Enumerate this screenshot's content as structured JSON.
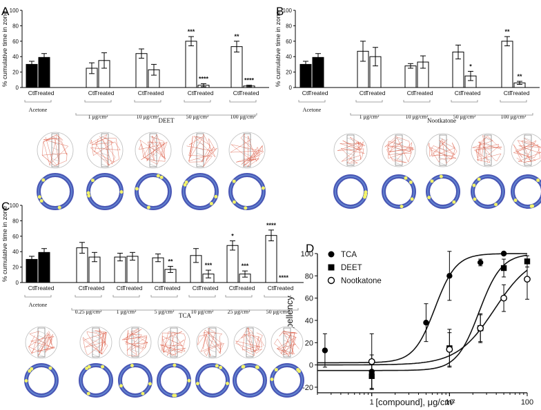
{
  "colors": {
    "control_fill": "#000000",
    "treated_fill": "#ffffff",
    "track_line": "#d9533b",
    "heat_ring": "#2a3aa8",
    "heat_hot": "#f3f36a"
  },
  "chart_data": [
    {
      "panel": "A",
      "type": "bar",
      "ylabel": "% cumulative time in zone",
      "ylim": [
        0,
        100
      ],
      "yticks": [
        "0",
        "20",
        "40",
        "60",
        "80",
        "100"
      ],
      "compound": "DEET",
      "bar_labels": [
        "Ctl",
        "Treated"
      ],
      "groups": [
        {
          "label": "Acetone",
          "values": [
            30,
            39
          ],
          "errors": [
            4,
            5
          ],
          "stars": [
            "",
            ""
          ],
          "control": true
        },
        {
          "label": "1 μg/cm²",
          "values": [
            25,
            35
          ],
          "errors": [
            7,
            10
          ],
          "stars": [
            "",
            ""
          ]
        },
        {
          "label": "10 μg/cm²",
          "values": [
            44,
            23
          ],
          "errors": [
            6,
            7
          ],
          "stars": [
            "",
            ""
          ]
        },
        {
          "label": "50 μg/cm²",
          "values": [
            60,
            3
          ],
          "errors": [
            6,
            2
          ],
          "stars": [
            "***",
            "****"
          ]
        },
        {
          "label": "100 μg/cm²",
          "values": [
            53,
            2
          ],
          "errors": [
            7,
            1
          ],
          "stars": [
            "**",
            "****"
          ]
        }
      ]
    },
    {
      "panel": "B",
      "type": "bar",
      "ylabel": "% cumulative time in zone",
      "ylim": [
        0,
        100
      ],
      "yticks": [
        "0",
        "20",
        "40",
        "60",
        "80",
        "100"
      ],
      "compound": "Nootkatone",
      "bar_labels": [
        "Ctl",
        "Treated"
      ],
      "groups": [
        {
          "label": "Acetone",
          "values": [
            30,
            39
          ],
          "errors": [
            4,
            5
          ],
          "stars": [
            "",
            ""
          ],
          "control": true
        },
        {
          "label": "1 μg/cm²",
          "values": [
            47,
            40
          ],
          "errors": [
            13,
            12
          ],
          "stars": [
            "",
            ""
          ]
        },
        {
          "label": "10 μg/cm²",
          "values": [
            28,
            33
          ],
          "errors": [
            3,
            8
          ],
          "stars": [
            "",
            ""
          ]
        },
        {
          "label": "50 μg/cm²",
          "values": [
            46,
            15
          ],
          "errors": [
            9,
            6
          ],
          "stars": [
            "",
            "*"
          ]
        },
        {
          "label": "100 μg/cm²",
          "values": [
            60,
            6
          ],
          "errors": [
            6,
            2
          ],
          "stars": [
            "**",
            "**"
          ]
        }
      ]
    },
    {
      "panel": "C",
      "type": "bar",
      "ylabel": "% cumulative time in zone",
      "ylim": [
        0,
        100
      ],
      "yticks": [
        "0",
        "20",
        "40",
        "60",
        "80",
        "100"
      ],
      "compound": "TCA",
      "bar_labels": [
        "Ctl",
        "Treated"
      ],
      "groups": [
        {
          "label": "Acetone",
          "values": [
            30,
            39
          ],
          "errors": [
            4,
            5
          ],
          "stars": [
            "",
            ""
          ],
          "control": true
        },
        {
          "label": "0.25 μg/cm²",
          "values": [
            45,
            33
          ],
          "errors": [
            7,
            6
          ],
          "stars": [
            "",
            ""
          ]
        },
        {
          "label": "1 μg/cm²",
          "values": [
            33,
            34
          ],
          "errors": [
            5,
            5
          ],
          "stars": [
            "",
            ""
          ]
        },
        {
          "label": "5 μg/cm²",
          "values": [
            32,
            17
          ],
          "errors": [
            5,
            4
          ],
          "stars": [
            "",
            "**"
          ]
        },
        {
          "label": "10 μg/cm²",
          "values": [
            35,
            11
          ],
          "errors": [
            9,
            5
          ],
          "stars": [
            "",
            "***"
          ]
        },
        {
          "label": "25 μg/cm²",
          "values": [
            48,
            11
          ],
          "errors": [
            6,
            4
          ],
          "stars": [
            "*",
            "***"
          ]
        },
        {
          "label": "50 μg/cm²",
          "values": [
            61,
            0
          ],
          "errors": [
            7,
            0
          ],
          "stars": [
            "****",
            "****"
          ]
        }
      ]
    },
    {
      "panel": "D",
      "type": "scatter",
      "xlabel": "[compound], μg/cm²",
      "ylabel": "% Repellency",
      "xscale": "log",
      "xlim": [
        0.2,
        100
      ],
      "ylim": [
        -25,
        100
      ],
      "xticks": [
        "1",
        "10",
        "100"
      ],
      "yticks": [
        "-20",
        "0",
        "20",
        "40",
        "60",
        "80",
        "100"
      ],
      "legend_position": "top-left",
      "series": [
        {
          "name": "TCA",
          "marker": "filled-circle",
          "x": [
            0.25,
            1,
            5,
            10,
            25,
            50
          ],
          "y": [
            13,
            -6,
            38,
            80,
            92,
            100
          ],
          "err": [
            15,
            15,
            17,
            22,
            3,
            0
          ],
          "fit": {
            "bottom": 2,
            "top": 100,
            "ec50": 6.5,
            "hill": 3.2
          }
        },
        {
          "name": "DEET",
          "marker": "filled-square",
          "x": [
            1,
            10,
            25,
            50,
            100
          ],
          "y": [
            -10,
            15,
            33,
            87,
            93
          ],
          "err": [
            12,
            17,
            12,
            8,
            5
          ],
          "fit": {
            "bottom": -5,
            "top": 100,
            "ec50": 24,
            "hill": 3.0
          }
        },
        {
          "name": "Nootkatone",
          "marker": "open-circle",
          "x": [
            1,
            10,
            25,
            50,
            100
          ],
          "y": [
            3,
            14,
            33,
            60,
            77
          ],
          "err": [
            25,
            15,
            13,
            12,
            18
          ],
          "fit": {
            "bottom": 0,
            "top": 100,
            "ec50": 38,
            "hill": 1.8
          }
        }
      ]
    }
  ]
}
